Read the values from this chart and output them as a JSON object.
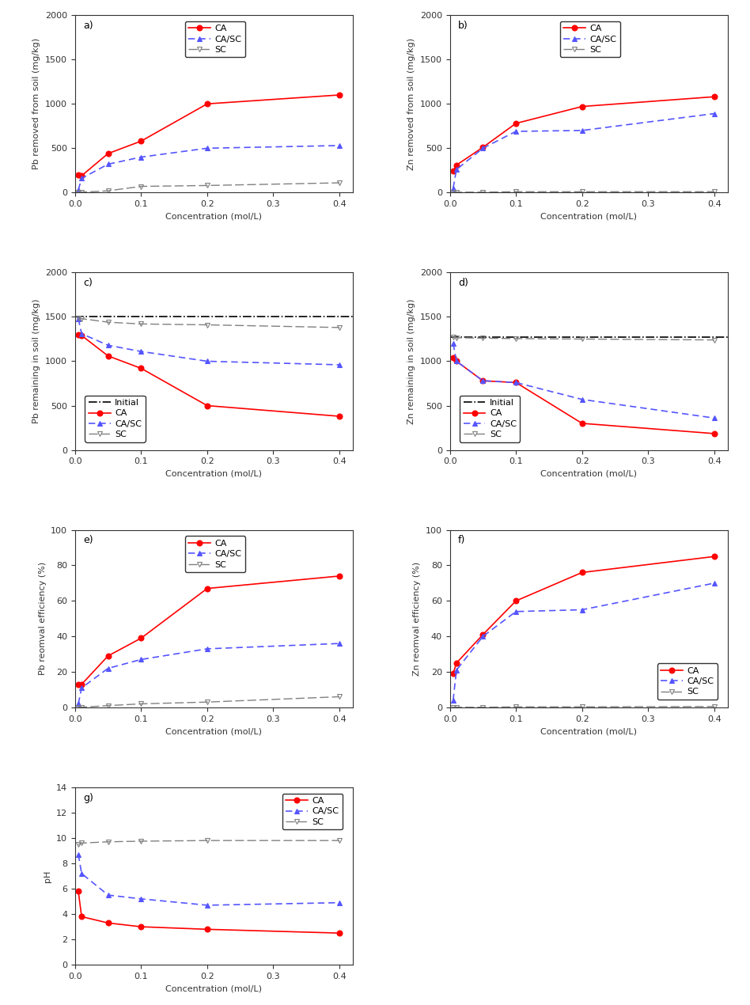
{
  "x_conc": [
    0.005,
    0.01,
    0.05,
    0.1,
    0.2,
    0.4
  ],
  "a_CA": [
    200,
    190,
    440,
    580,
    1000,
    1100
  ],
  "a_CASC": [
    30,
    160,
    320,
    400,
    500,
    530
  ],
  "a_SC": [
    5,
    5,
    20,
    70,
    80,
    110
  ],
  "b_CA": [
    240,
    310,
    510,
    780,
    970,
    1080
  ],
  "b_CASC": [
    50,
    260,
    500,
    690,
    700,
    890
  ],
  "b_SC": [
    5,
    5,
    5,
    10,
    10,
    10
  ],
  "c_initial": 1500,
  "c_CA": [
    1300,
    1290,
    1060,
    920,
    500,
    380
  ],
  "c_CASC": [
    1480,
    1310,
    1180,
    1110,
    1000,
    960
  ],
  "c_SC": [
    1490,
    1480,
    1440,
    1420,
    1410,
    1380
  ],
  "d_initial": 1270,
  "d_CA": [
    1040,
    1000,
    780,
    760,
    300,
    185
  ],
  "d_CASC": [
    1200,
    1000,
    780,
    760,
    570,
    360
  ],
  "d_SC": [
    1270,
    1265,
    1260,
    1255,
    1250,
    1240
  ],
  "e_CA": [
    13,
    13,
    29,
    39,
    67,
    74
  ],
  "e_CASC": [
    2,
    11,
    22,
    27,
    33,
    36
  ],
  "e_SC": [
    0.1,
    0.1,
    1.0,
    2.0,
    3.0,
    6
  ],
  "f_CA": [
    19,
    25,
    41,
    60,
    76,
    85
  ],
  "f_CASC": [
    4,
    21,
    40,
    54,
    55,
    70
  ],
  "f_SC": [
    0.1,
    0.1,
    0.1,
    0.3,
    0.3,
    0.5
  ],
  "g_CA": [
    5.8,
    3.8,
    3.3,
    3.0,
    2.8,
    2.5
  ],
  "g_CASC": [
    8.7,
    7.2,
    5.5,
    5.2,
    4.7,
    4.9
  ],
  "g_SC": [
    9.5,
    9.6,
    9.7,
    9.75,
    9.8,
    9.8
  ],
  "color_CA": "#ff0000",
  "color_CASC": "#5555ff",
  "color_SC": "#808080",
  "color_initial": "#000000",
  "xlabel": "Concentration (mol/L)",
  "ylabel_a": "Pb removed from soil (mg/kg)",
  "ylabel_b": "Zn removed from soil (mg/kg)",
  "ylabel_c": "Pb remaining in soil (mg/kg)",
  "ylabel_d": "Zn remaining in soil (mg/kg)",
  "ylabel_e": "Pb reomval efficiency (%)",
  "ylabel_f": "Zn reomval efficiency (%)",
  "ylabel_g": "pH",
  "xlim": [
    0.0,
    0.42
  ],
  "ylim_ab": [
    0,
    2000
  ],
  "ylim_cd": [
    0,
    2000
  ],
  "ylim_ef": [
    0,
    100
  ],
  "ylim_g": [
    0,
    14
  ]
}
